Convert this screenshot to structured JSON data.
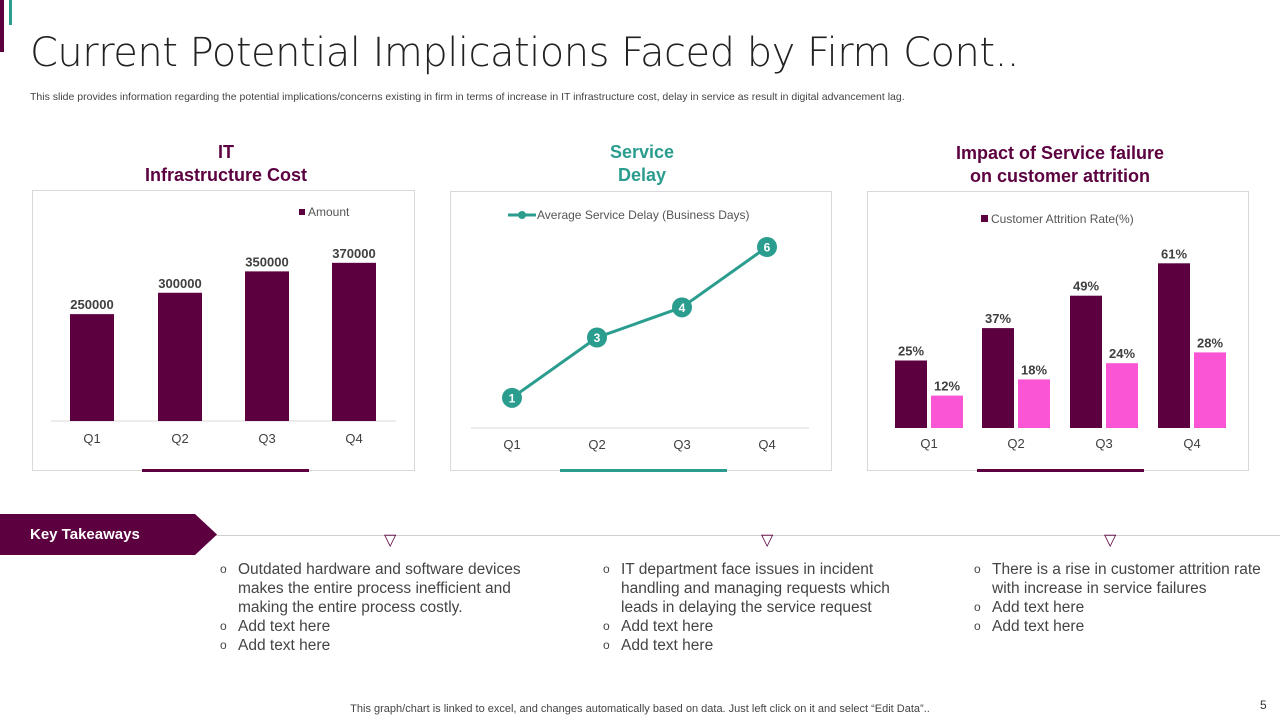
{
  "slide": {
    "title": "Current Potential Implications Faced by Firm Cont..",
    "subtitle": "This slide provides information regarding the potential implications/concerns existing in firm in terms of increase in IT infrastructure cost, delay in service as result in digital advancement lag.",
    "footer": "This graph/chart is linked to excel,  and changes automatically based on data. Just left click on it and select “Edit Data”..",
    "page_number": "5",
    "colors": {
      "purple": "#5c0040",
      "teal": "#2a9d8f",
      "pink": "#f955d5"
    }
  },
  "chart_data": [
    {
      "type": "bar",
      "title_line1": "IT",
      "title_line2": "Infrastructure Cost",
      "categories": [
        "Q1",
        "Q2",
        "Q3",
        "Q4"
      ],
      "legend": "Amount",
      "values": [
        250000,
        300000,
        350000,
        370000
      ],
      "labels": [
        "250000",
        "300000",
        "350000",
        "370000"
      ],
      "ylim": [
        0,
        400000
      ],
      "legend_position": "top-right"
    },
    {
      "type": "line",
      "title_line1": "Service",
      "title_line2": "Delay",
      "categories": [
        "Q1",
        "Q2",
        "Q3",
        "Q4"
      ],
      "legend": "Average Service Delay (Business Days)",
      "values": [
        1,
        3,
        4,
        6
      ],
      "labels": [
        "1",
        "3",
        "4",
        "6"
      ],
      "ylim": [
        0,
        6
      ],
      "legend_position": "top"
    },
    {
      "type": "bar",
      "title_line1": "Impact of Service failure",
      "title_line2": "on customer attrition",
      "categories": [
        "Q1",
        "Q2",
        "Q3",
        "Q4"
      ],
      "legend": "Customer Attrition Rate(%)",
      "series": [
        {
          "name": "Customer Attrition Rate(%)",
          "values": [
            25,
            37,
            49,
            61
          ],
          "labels": [
            "25%",
            "37%",
            "49%",
            "61%"
          ]
        },
        {
          "name": "",
          "values": [
            12,
            18,
            24,
            28
          ],
          "labels": [
            "12%",
            "18%",
            "24%",
            "28%"
          ]
        }
      ],
      "ylim": [
        0,
        61
      ],
      "legend_position": "top"
    }
  ],
  "takeaways": {
    "label": "Key Takeaways",
    "columns": [
      [
        "Outdated hardware and software devices makes the entire process inefficient and making the entire process costly.",
        "Add text here",
        "Add text here"
      ],
      [
        "IT department face issues in incident handling and managing requests which leads in delaying the service request",
        "Add text here",
        "Add text here"
      ],
      [
        "There is a rise in customer attrition rate with increase in service failures",
        "Add text here",
        "Add text here"
      ]
    ]
  }
}
